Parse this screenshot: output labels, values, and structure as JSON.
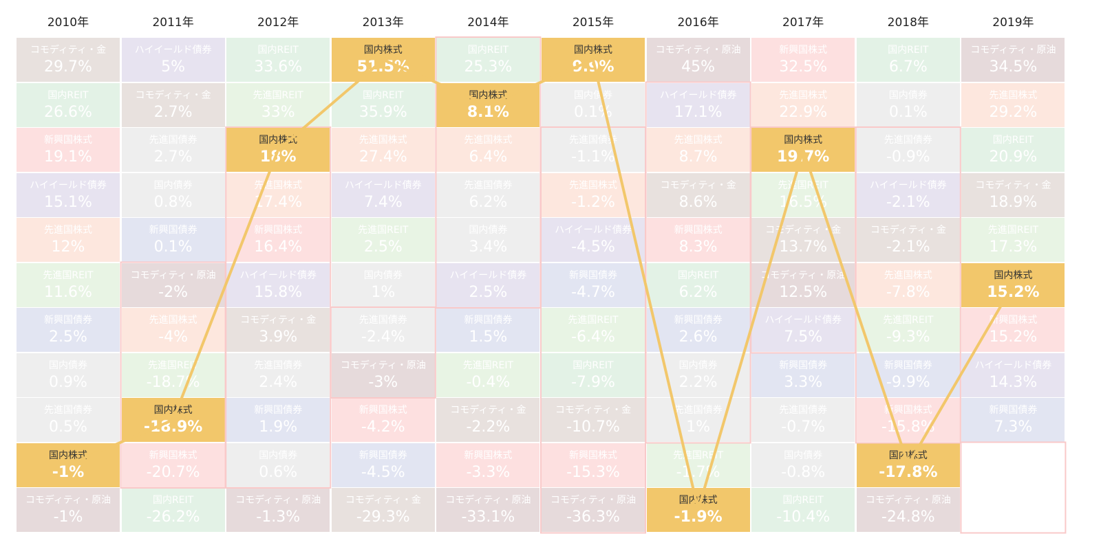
{
  "chart_data": {
    "type": "table",
    "highlight": "国内株式",
    "colors": {
      "国内株式": "#f2c76b",
      "コモディティ・金": "#e8e1de",
      "コモディティ・原油": "#e6dadb",
      "国内REIT": "#e3f2e6",
      "先進国REIT": "#e8f4e4",
      "新興国株式": "#fde0e0",
      "ハイイールド債券": "#e7e3f0",
      "先進国株式": "#fde7de",
      "新興国債券": "#e2e5f2",
      "国内債券": "#eeeeee",
      "先進国債券": "#eeeeee",
      "line": "#f2c76b",
      "outline": "#f9c9c9"
    },
    "years": [
      {
        "year": "2010年",
        "items": [
          {
            "name": "コモディティ・金",
            "value": "29.7%"
          },
          {
            "name": "国内REIT",
            "value": "26.6%"
          },
          {
            "name": "新興国株式",
            "value": "19.1%"
          },
          {
            "name": "ハイイールド債券",
            "value": "15.1%"
          },
          {
            "name": "先進国株式",
            "value": "12%"
          },
          {
            "name": "先進国REIT",
            "value": "11.6%"
          },
          {
            "name": "新興国債券",
            "value": "2.5%"
          },
          {
            "name": "国内債券",
            "value": "0.9%"
          },
          {
            "name": "先進国債券",
            "value": "0.5%"
          },
          {
            "name": "国内株式",
            "value": "-1%"
          },
          {
            "name": "コモディティ・原油",
            "value": "-1%"
          }
        ]
      },
      {
        "year": "2011年",
        "items": [
          {
            "name": "ハイイールド債券",
            "value": "5%"
          },
          {
            "name": "コモディティ・金",
            "value": "2.7%"
          },
          {
            "name": "先進国債券",
            "value": "2.7%"
          },
          {
            "name": "国内債券",
            "value": "0.8%"
          },
          {
            "name": "新興国債券",
            "value": "0.1%"
          },
          {
            "name": "コモディティ・原油",
            "value": "-2%"
          },
          {
            "name": "先進国株式",
            "value": "-4%"
          },
          {
            "name": "先進国REIT",
            "value": "-18.7%"
          },
          {
            "name": "国内株式",
            "value": "-18.9%"
          },
          {
            "name": "新興国株式",
            "value": "-20.7%"
          },
          {
            "name": "国内REIT",
            "value": "-26.2%"
          }
        ]
      },
      {
        "year": "2012年",
        "items": [
          {
            "name": "国内REIT",
            "value": "33.6%"
          },
          {
            "name": "先進国REIT",
            "value": "33%"
          },
          {
            "name": "国内株式",
            "value": "18%"
          },
          {
            "name": "先進国株式",
            "value": "17.4%"
          },
          {
            "name": "新興国株式",
            "value": "16.4%"
          },
          {
            "name": "ハイイールド債券",
            "value": "15.8%"
          },
          {
            "name": "コモディティ・金",
            "value": "3.9%"
          },
          {
            "name": "先進国債券",
            "value": "2.4%"
          },
          {
            "name": "新興国債券",
            "value": "1.9%"
          },
          {
            "name": "国内債券",
            "value": "0.6%"
          },
          {
            "name": "コモディティ・原油",
            "value": "-1.3%"
          }
        ]
      },
      {
        "year": "2013年",
        "items": [
          {
            "name": "国内株式",
            "value": "51.5%"
          },
          {
            "name": "国内REIT",
            "value": "35.9%"
          },
          {
            "name": "先進国株式",
            "value": "27.4%"
          },
          {
            "name": "ハイイールド債券",
            "value": "7.4%"
          },
          {
            "name": "先進国REIT",
            "value": "2.5%"
          },
          {
            "name": "国内債券",
            "value": "1%"
          },
          {
            "name": "先進国債券",
            "value": "-2.4%"
          },
          {
            "name": "コモディティ・原油",
            "value": "-3%"
          },
          {
            "name": "新興国株式",
            "value": "-4.2%"
          },
          {
            "name": "新興国債券",
            "value": "-4.5%"
          },
          {
            "name": "コモディティ・金",
            "value": "-29.3%"
          }
        ]
      },
      {
        "year": "2014年",
        "items": [
          {
            "name": "国内REIT",
            "value": "25.3%"
          },
          {
            "name": "国内株式",
            "value": "8.1%"
          },
          {
            "name": "先進国株式",
            "value": "6.4%"
          },
          {
            "name": "先進国債券",
            "value": "6.2%"
          },
          {
            "name": "国内債券",
            "value": "3.4%"
          },
          {
            "name": "ハイイールド債券",
            "value": "2.5%"
          },
          {
            "name": "新興国債券",
            "value": "1.5%"
          },
          {
            "name": "先進国REIT",
            "value": "-0.4%"
          },
          {
            "name": "コモディティ・金",
            "value": "-2.2%"
          },
          {
            "name": "新興国株式",
            "value": "-3.3%"
          },
          {
            "name": "コモディティ・原油",
            "value": "-33.1%"
          }
        ]
      },
      {
        "year": "2015年",
        "items": [
          {
            "name": "国内株式",
            "value": "9.9%"
          },
          {
            "name": "国内債券",
            "value": "0.1%"
          },
          {
            "name": "先進国債券",
            "value": "-1.1%"
          },
          {
            "name": "先進国株式",
            "value": "-1.2%"
          },
          {
            "name": "ハイイールド債券",
            "value": "-4.5%"
          },
          {
            "name": "新興国債券",
            "value": "-4.7%"
          },
          {
            "name": "先進国REIT",
            "value": "-6.4%"
          },
          {
            "name": "国内REIT",
            "value": "-7.9%"
          },
          {
            "name": "コモディティ・金",
            "value": "-10.7%"
          },
          {
            "name": "新興国株式",
            "value": "-15.3%"
          },
          {
            "name": "コモディティ・原油",
            "value": "-36.3%"
          }
        ]
      },
      {
        "year": "2016年",
        "items": [
          {
            "name": "コモディティ・原油",
            "value": "45%"
          },
          {
            "name": "ハイイールド債券",
            "value": "17.1%"
          },
          {
            "name": "先進国株式",
            "value": "8.7%"
          },
          {
            "name": "コモディティ・金",
            "value": "8.6%"
          },
          {
            "name": "新興国株式",
            "value": "8.3%"
          },
          {
            "name": "国内REIT",
            "value": "6.2%"
          },
          {
            "name": "新興国債券",
            "value": "2.6%"
          },
          {
            "name": "国内債券",
            "value": "2.2%"
          },
          {
            "name": "先進国債券",
            "value": "1%"
          },
          {
            "name": "先進国REIT",
            "value": "-1.7%"
          },
          {
            "name": "国内株式",
            "value": "-1.9%"
          }
        ]
      },
      {
        "year": "2017年",
        "items": [
          {
            "name": "新興国株式",
            "value": "32.5%"
          },
          {
            "name": "先進国株式",
            "value": "22.9%"
          },
          {
            "name": "国内株式",
            "value": "19.7%"
          },
          {
            "name": "先進国REIT",
            "value": "16.5%"
          },
          {
            "name": "コモディティ・金",
            "value": "13.7%"
          },
          {
            "name": "コモディティ・原油",
            "value": "12.5%"
          },
          {
            "name": "ハイイールド債券",
            "value": "7.5%"
          },
          {
            "name": "新興国債券",
            "value": "3.3%"
          },
          {
            "name": "先進国債券",
            "value": "-0.7%"
          },
          {
            "name": "国内債券",
            "value": "-0.8%"
          },
          {
            "name": "国内REIT",
            "value": "-10.4%"
          }
        ]
      },
      {
        "year": "2018年",
        "items": [
          {
            "name": "国内REIT",
            "value": "6.7%"
          },
          {
            "name": "国内債券",
            "value": "0.1%"
          },
          {
            "name": "先進国債券",
            "value": "-0.9%"
          },
          {
            "name": "ハイイールド債券",
            "value": "-2.1%"
          },
          {
            "name": "コモディティ・金",
            "value": "-2.1%"
          },
          {
            "name": "先進国株式",
            "value": "-7.8%"
          },
          {
            "name": "先進国REIT",
            "value": "-9.3%"
          },
          {
            "name": "新興国債券",
            "value": "-9.9%"
          },
          {
            "name": "新興国株式",
            "value": "-15.8%"
          },
          {
            "name": "国内株式",
            "value": "-17.8%"
          },
          {
            "name": "コモディティ・原油",
            "value": "-24.8%"
          }
        ]
      },
      {
        "year": "2019年",
        "items": [
          {
            "name": "コモディティ・原油",
            "value": "34.5%"
          },
          {
            "name": "先進国株式",
            "value": "29.2%"
          },
          {
            "name": "国内REIT",
            "value": "20.9%"
          },
          {
            "name": "コモディティ・金",
            "value": "18.9%"
          },
          {
            "name": "先進国REIT",
            "value": "17.3%"
          },
          {
            "name": "国内株式",
            "value": "15.2%"
          },
          {
            "name": "新興国株式",
            "value": "15.2%"
          },
          {
            "name": "ハイイールド債券",
            "value": "14.3%"
          },
          {
            "name": "新興国債券",
            "value": "7.3%"
          }
        ]
      }
    ]
  }
}
